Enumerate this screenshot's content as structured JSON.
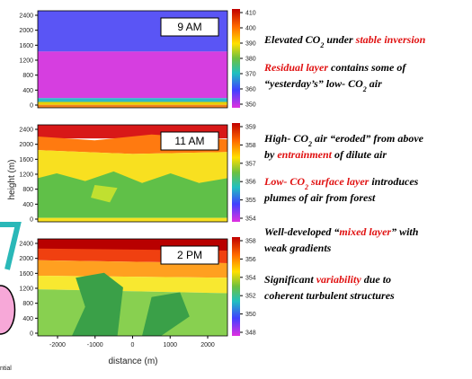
{
  "y_axis": {
    "label": "height (m)",
    "ticks": [
      2400,
      2000,
      1600,
      1200,
      800,
      400,
      0
    ]
  },
  "x_axis": {
    "label": "distance (m)",
    "ticks": [
      -2000,
      -1000,
      0,
      1000,
      2000
    ]
  },
  "panels": [
    {
      "label": "9 AM",
      "colorbar_ticks": [
        410,
        400,
        390,
        380,
        370,
        360,
        350
      ]
    },
    {
      "label": "11 AM",
      "colorbar_ticks": [
        359,
        358,
        357,
        356,
        355,
        354
      ]
    },
    {
      "label": "2 PM",
      "colorbar_ticks": [
        358,
        356,
        354,
        352,
        350,
        348
      ]
    }
  ],
  "annotations": [
    {
      "lines": [
        [
          {
            "text": "Elevated CO"
          },
          {
            "text": "2",
            "sub": true
          },
          {
            "text": " under "
          },
          {
            "text": "stable inversion",
            "red": true
          }
        ]
      ]
    },
    {
      "lines": [
        [
          {
            "text": "Residual layer",
            "red": true
          },
          {
            "text": " contains some of"
          }
        ],
        [
          {
            "text": "“yesterday’s” low- CO"
          },
          {
            "text": "2",
            "sub": true
          },
          {
            "text": " air"
          }
        ]
      ]
    },
    {
      "lines": [
        [
          {
            "text": "High- CO"
          },
          {
            "text": "2",
            "sub": true
          },
          {
            "text": " air “eroded” from above"
          }
        ],
        [
          {
            "text": "by "
          },
          {
            "text": "entrainment",
            "red": true
          },
          {
            "text": " of dilute air"
          }
        ]
      ]
    },
    {
      "lines": [
        [
          {
            "text": "Low- CO",
            "red": true
          },
          {
            "text": "2",
            "sub": true,
            "red": true
          },
          {
            "text": " surface layer",
            "red": true
          },
          {
            "text": " introduces"
          }
        ],
        [
          {
            "text": "plumes of air from forest"
          }
        ]
      ]
    },
    {
      "lines": [
        [
          {
            "text": "Well-developed “"
          },
          {
            "text": "mixed layer",
            "red": true
          },
          {
            "text": "” with"
          }
        ],
        [
          {
            "text": "weak gradients"
          }
        ]
      ]
    },
    {
      "lines": [
        [
          {
            "text": "Significant "
          },
          {
            "text": "variability",
            "red": true
          },
          {
            "text": " due to"
          }
        ],
        [
          {
            "text": "coherent turbulent structures"
          }
        ]
      ]
    }
  ],
  "edge_text": "ntial"
}
